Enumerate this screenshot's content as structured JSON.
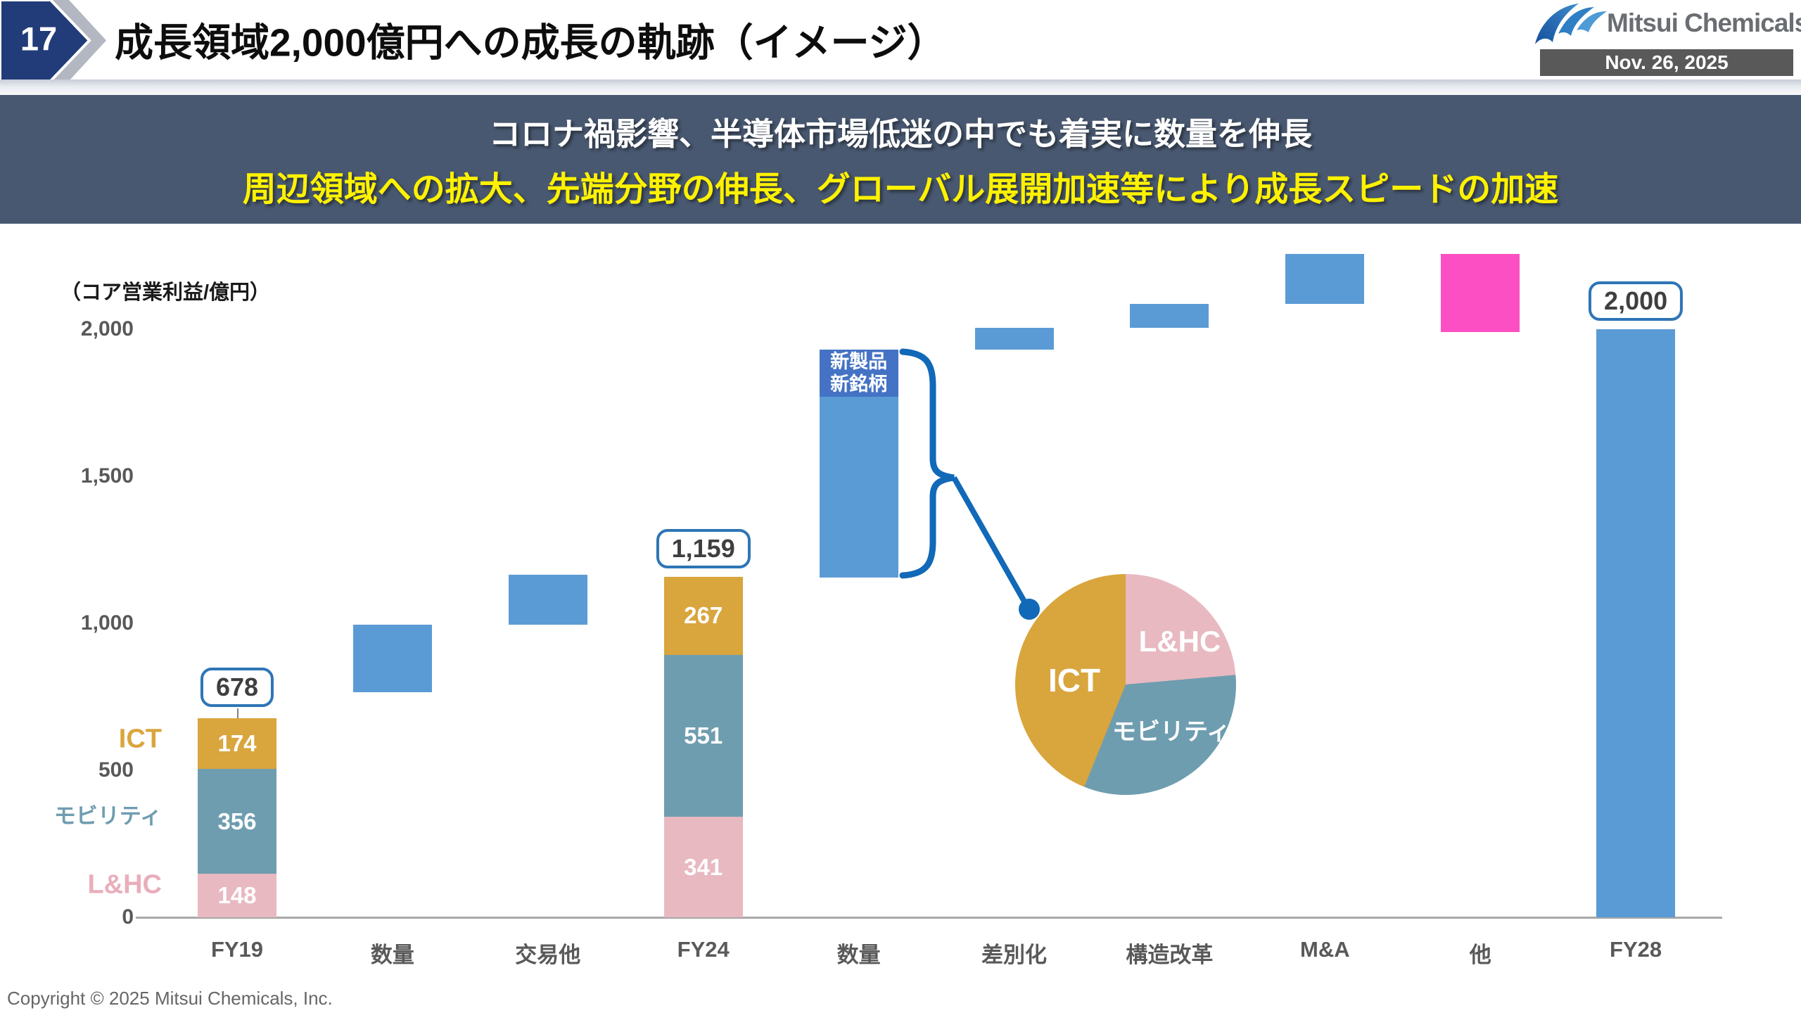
{
  "header": {
    "page_number": "17",
    "title": "成長領域2,000億円への成長の軌跡（イメージ）",
    "logo_text": "Mitsui Chemicals",
    "date": "Nov. 26, 2025"
  },
  "banner": {
    "line1": "コロナ禍影響、半導体市場低迷の中でも着実に数量を伸長",
    "line2": "周辺領域への拡大、先端分野の伸長、グローバル展開加速等により成長スピードの加速"
  },
  "footer": {
    "copyright": "Copyright © 2025 Mitsui Chemicals, Inc."
  },
  "colors": {
    "bar_blue": "#5b9bd5",
    "bar_magenta": "#fb4fc3",
    "ict_gold": "#d9a53d",
    "mobility_teal": "#6f9db0",
    "lhc_pink": "#e8b9c1",
    "annotation_blue": "#4472c4",
    "box_border_blue": "#2e75b6",
    "callout_blue": "#1169b8",
    "banner_bg": "#485870",
    "chevron_navy": "#213c78",
    "chevron_gray": "#b3b7c2",
    "badge_gray": "#595959"
  },
  "chart_data": {
    "type": "waterfall",
    "title": "成長領域2,000億円への成長の軌跡（イメージ）",
    "axis_label": "（コア営業利益/億円）",
    "ylabel": "コア営業利益/億円",
    "ylim": [
      0,
      2400
    ],
    "grid": false,
    "y_ticks": [
      {
        "label": "0",
        "value": 0
      },
      {
        "label": "500",
        "value": 500
      },
      {
        "label": "1,000",
        "value": 1000
      },
      {
        "label": "1,500",
        "value": 1500
      },
      {
        "label": "2,000",
        "value": 2000
      }
    ],
    "legend": [
      {
        "label": "ICT",
        "color": "#d9a53d"
      },
      {
        "label": "モビリティ",
        "color": "#6f9db0"
      },
      {
        "label": "L&HC",
        "color": "#e9aebb"
      }
    ],
    "bars": [
      {
        "label": "FY19",
        "type": "stacked",
        "total": 678,
        "total_box": {
          "label": "678",
          "connector": true
        },
        "segments": [
          {
            "name": "L&HC",
            "value": 148,
            "text": "148",
            "color": "#e8b9c1"
          },
          {
            "name": "モビリティ",
            "value": 356,
            "text": "356",
            "color": "#6f9db0"
          },
          {
            "name": "ICT",
            "value": 174,
            "text": "174",
            "color": "#d9a53d"
          }
        ]
      },
      {
        "label": "数量",
        "type": "float",
        "from": 765,
        "to": 995,
        "color": "#5b9bd5"
      },
      {
        "label": "交易他",
        "type": "float",
        "from": 995,
        "to": 1165,
        "color": "#5b9bd5"
      },
      {
        "label": "FY24",
        "type": "stacked",
        "total": 1159,
        "total_box": {
          "label": "1,159",
          "connector": false
        },
        "segments": [
          {
            "name": "L&HC",
            "value": 341,
            "text": "341",
            "color": "#e8b9c1"
          },
          {
            "name": "モビリティ",
            "value": 551,
            "text": "551",
            "color": "#6f9db0"
          },
          {
            "name": "ICT",
            "value": 267,
            "text": "267",
            "color": "#d9a53d"
          }
        ]
      },
      {
        "label": "数量",
        "type": "float",
        "from": 1155,
        "to": 1930,
        "color": "#5b9bd5",
        "annotation": {
          "lines": [
            "新製品",
            "新銘柄"
          ],
          "from": 1770,
          "color": "#4472c4"
        }
      },
      {
        "label": "差別化",
        "type": "float",
        "from": 1930,
        "to": 2005,
        "color": "#5b9bd5"
      },
      {
        "label": "構造改革",
        "type": "float",
        "from": 2005,
        "to": 2085,
        "color": "#5b9bd5"
      },
      {
        "label": "M&A",
        "type": "float",
        "from": 2085,
        "to": 2255,
        "color": "#5b9bd5"
      },
      {
        "label": "他",
        "type": "float",
        "from": 1990,
        "to": 2255,
        "color": "#fb4fc3"
      },
      {
        "label": "FY28",
        "type": "float",
        "from": 0,
        "to": 2000,
        "color": "#5b9bd5",
        "total_box": {
          "label": "2,000",
          "connector": false
        }
      }
    ],
    "pie": {
      "slices": [
        {
          "name": "L&HC",
          "start_deg": 0,
          "end_deg": 85,
          "color": "#e8b9c1"
        },
        {
          "name": "モビリティ",
          "start_deg": 85,
          "end_deg": 202,
          "color": "#6f9db0"
        },
        {
          "name": "ICT",
          "start_deg": 202,
          "end_deg": 360,
          "color": "#d9a53d"
        }
      ]
    }
  }
}
